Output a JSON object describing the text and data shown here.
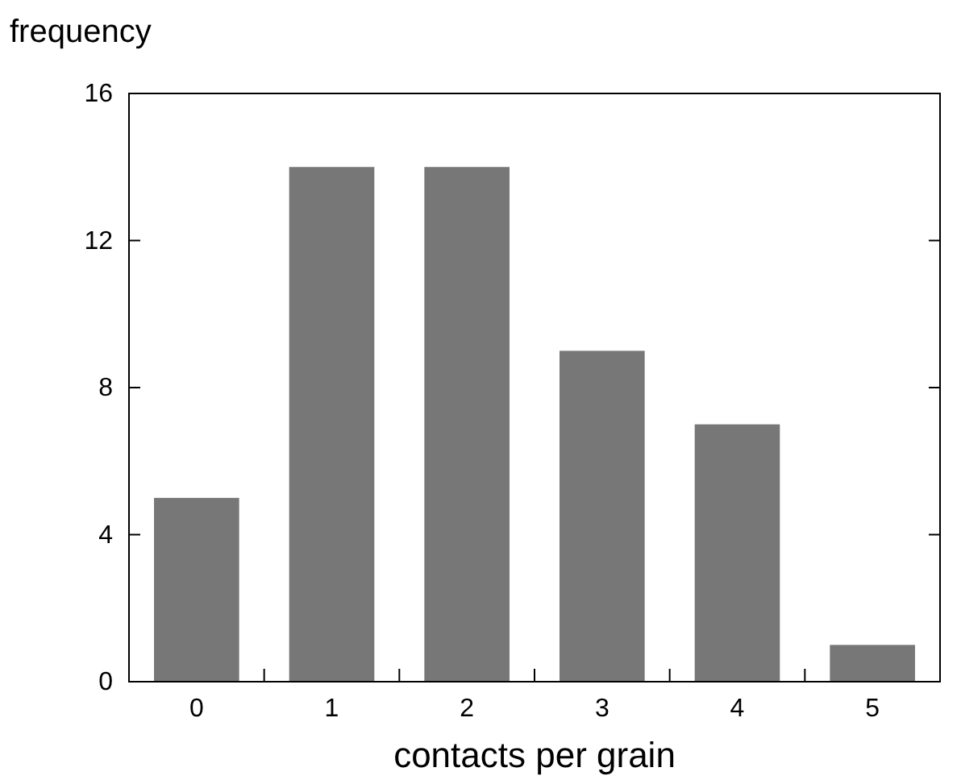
{
  "chart_data": {
    "type": "bar",
    "ylabel": "frequency",
    "xlabel": "contacts per grain",
    "categories": [
      "0",
      "1",
      "2",
      "3",
      "4",
      "5"
    ],
    "values": [
      5,
      14,
      14,
      9,
      7,
      1
    ],
    "color": "#777777",
    "ylim": [
      0,
      16
    ],
    "yticks": [
      0,
      4,
      8,
      12,
      16
    ],
    "grid": false
  }
}
